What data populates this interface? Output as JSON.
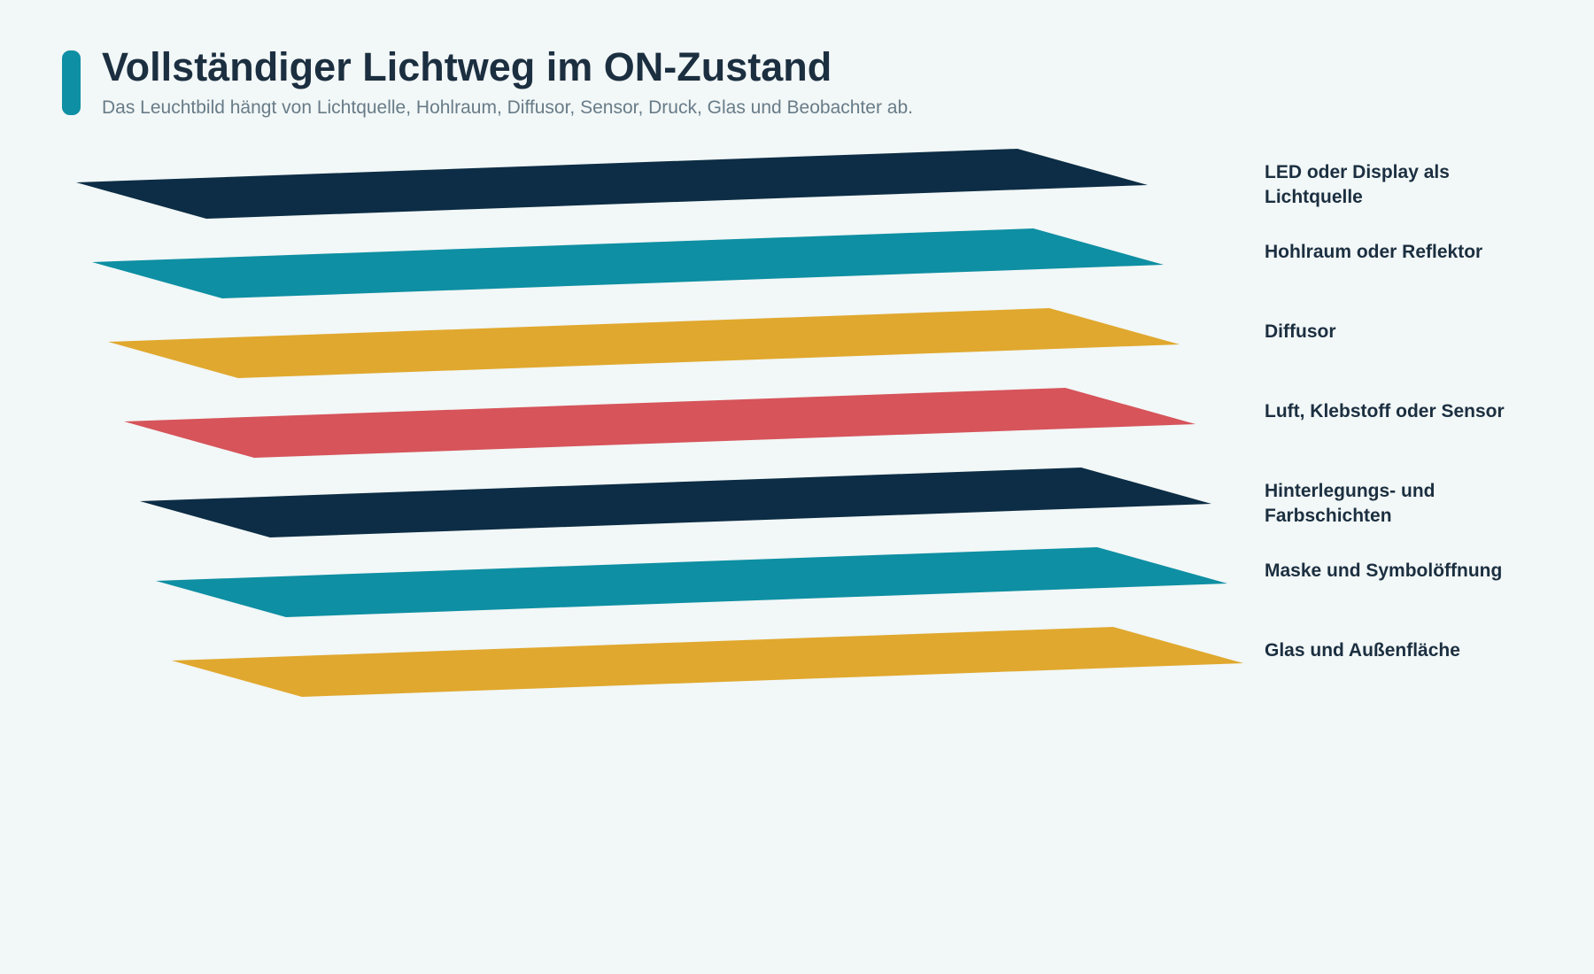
{
  "header": {
    "title": "Vollständiger Lichtweg im ON-Zustand",
    "subtitle": "Das Leuchtbild hängt von Lichtquelle, Hohlraum, Diffusor, Sensor, Druck, Glas und Beobachter ab.",
    "accent_color": "#0e8fa3"
  },
  "layers": [
    {
      "label": "LED oder Display als Lichtquelle",
      "color": "#0c2d45"
    },
    {
      "label": "Hohlraum oder Reflektor",
      "color": "#0e8fa3"
    },
    {
      "label": "Diffusor",
      "color": "#e0a82e"
    },
    {
      "label": "Luft, Klebstoff oder Sensor",
      "color": "#d6545a"
    },
    {
      "label": "Hinterlegungs- und Farbschichten",
      "color": "#0c2d45"
    },
    {
      "label": "Maske und Symbolöffnung",
      "color": "#0e8fa3"
    },
    {
      "label": "Glas und Außenfläche",
      "color": "#e0a82e"
    }
  ]
}
